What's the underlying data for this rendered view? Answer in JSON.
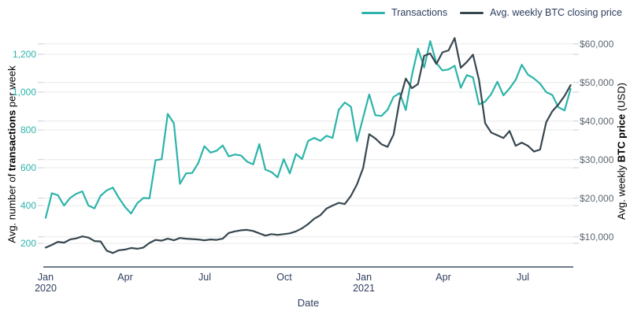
{
  "legend": {
    "items": [
      {
        "label": "Transactions",
        "color": "#2CB4AA"
      },
      {
        "label": "Avg. weekly BTC closing price",
        "color": "#37474F"
      }
    ]
  },
  "axes": {
    "x": {
      "title": "Date",
      "ticks": [
        {
          "month": "Jan",
          "year": "2020",
          "month_index": 0
        },
        {
          "month": "Apr",
          "month_index": 3
        },
        {
          "month": "Jul",
          "month_index": 6
        },
        {
          "month": "Oct",
          "month_index": 9
        },
        {
          "month": "Jan",
          "year": "2021",
          "month_index": 12
        },
        {
          "month": "Apr",
          "month_index": 15
        },
        {
          "month": "Jul",
          "month_index": 18
        }
      ]
    },
    "left": {
      "title_prefix": "Avg. number of ",
      "title_bold": "transactions",
      "title_suffix": " per week",
      "tick_labels": [
        "200",
        "400",
        "600",
        "800",
        "1,000",
        "1,200"
      ],
      "text_color": "#2BB3AA"
    },
    "right": {
      "title_prefix": "Avg. weekly ",
      "title_bold": "BTC price",
      "title_suffix": " (USD)",
      "tick_labels": [
        "$10,000",
        "$20,000",
        "$30,000",
        "$40,000",
        "$50,000",
        "$60,000"
      ],
      "text_color": "#5B6670"
    }
  },
  "chart_data": {
    "type": "line",
    "title": "",
    "xlabel": "Date",
    "x_unit": "week",
    "x_range": [
      "Jan 2020",
      "Aug 2021"
    ],
    "n_points": 87,
    "grid": true,
    "legend_position": "top-right",
    "left_axis": {
      "label": "Avg. number of transactions per week",
      "ticks": [
        200,
        400,
        600,
        800,
        1000,
        1200
      ],
      "range_shown": [
        200,
        1200
      ]
    },
    "right_axis": {
      "label": "Avg. weekly BTC price (USD)",
      "ticks": [
        10000,
        20000,
        30000,
        40000,
        50000,
        60000
      ],
      "range_shown": [
        10000,
        60000
      ]
    },
    "series": [
      {
        "name": "Transactions",
        "yaxis": "left",
        "color": "#2CB4AA",
        "values": [
          335,
          465,
          455,
          400,
          440,
          462,
          475,
          400,
          385,
          452,
          480,
          495,
          440,
          392,
          358,
          412,
          440,
          438,
          640,
          645,
          885,
          835,
          515,
          570,
          572,
          625,
          714,
          680,
          690,
          718,
          660,
          670,
          665,
          632,
          618,
          725,
          590,
          577,
          549,
          646,
          570,
          673,
          646,
          742,
          758,
          742,
          769,
          758,
          906,
          945,
          923,
          740,
          865,
          988,
          878,
          874,
          906,
          975,
          995,
          905,
          1090,
          1230,
          1130,
          1270,
          1155,
          1115,
          1120,
          1140,
          1023,
          1090,
          1078,
          935,
          950,
          990,
          1055,
          983,
          1020,
          1065,
          1145,
          1093,
          1072,
          1045,
          1000,
          985,
          920,
          903,
          1018
        ]
      },
      {
        "name": "Avg. weekly BTC closing price",
        "yaxis": "right",
        "color": "#37474F",
        "values": [
          7200,
          7900,
          8700,
          8500,
          9300,
          9600,
          10100,
          9800,
          8900,
          8800,
          6400,
          5800,
          6500,
          6700,
          7100,
          6900,
          7200,
          8400,
          9200,
          9000,
          9500,
          9100,
          9700,
          9500,
          9400,
          9300,
          9100,
          9300,
          9200,
          9500,
          11000,
          11400,
          11700,
          11800,
          11500,
          10900,
          10300,
          10700,
          10500,
          10700,
          10900,
          11400,
          12200,
          13300,
          14700,
          15600,
          17300,
          18100,
          18800,
          18500,
          20600,
          23600,
          27800,
          36600,
          35500,
          34000,
          33300,
          36500,
          45500,
          51000,
          48500,
          49600,
          56900,
          57500,
          54800,
          57800,
          58300,
          61500,
          53800,
          55300,
          57200,
          50600,
          39400,
          37000,
          36300,
          35600,
          37400,
          33600,
          34400,
          33600,
          32100,
          32600,
          39700,
          42500,
          44300,
          46500,
          49300
        ]
      }
    ]
  }
}
